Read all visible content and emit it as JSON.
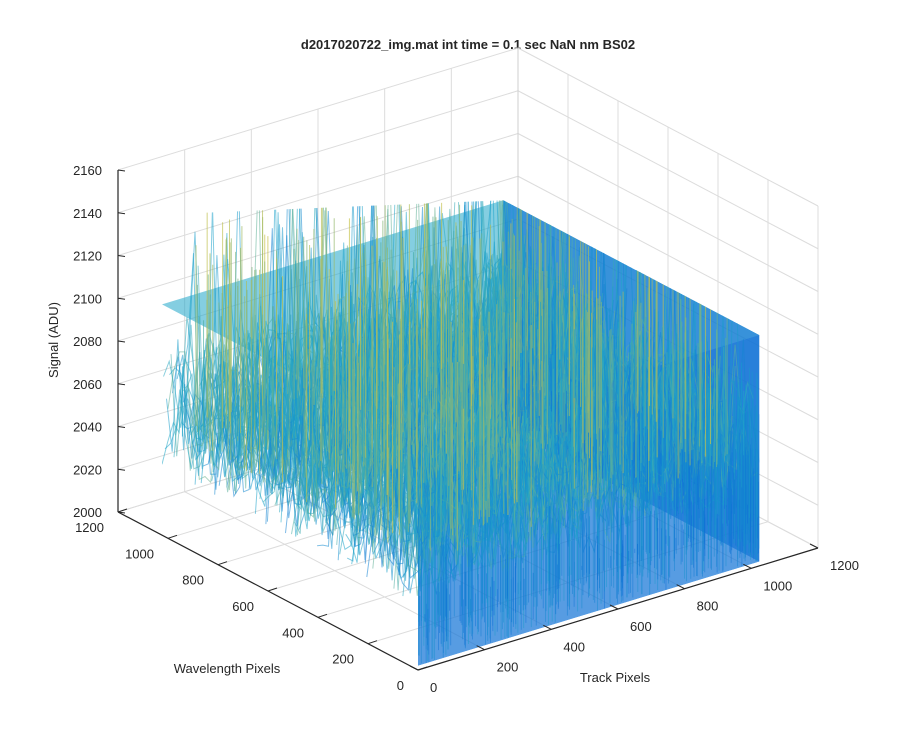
{
  "chart_data": {
    "type": "surface",
    "title": "d2017020722_img.mat int time = 0.1 sec  NaN nm BS02",
    "xlabel": "Track Pixels",
    "ylabel": "Wavelength Pixels",
    "zlabel": "Signal (ADU)",
    "xlim": [
      0,
      1200
    ],
    "ylim": [
      0,
      1200
    ],
    "zlim": [
      2000,
      2160
    ],
    "xticks": [
      "0",
      "200",
      "400",
      "600",
      "800",
      "1000",
      "1200"
    ],
    "yticks": [
      "0",
      "200",
      "400",
      "600",
      "800",
      "1000",
      "1200"
    ],
    "zticks": [
      "2000",
      "2020",
      "2040",
      "2060",
      "2080",
      "2100",
      "2120",
      "2140",
      "2160"
    ],
    "grid": true,
    "colormap": "parula",
    "surface": {
      "x_extent": [
        0,
        1024
      ],
      "y_extent": [
        0,
        1024
      ],
      "signal_mean": 2060,
      "signal_typical_range": [
        2020,
        2100
      ],
      "signal_peak_max": 2150
    },
    "colors": {
      "low": "#0f72d6",
      "mid": "#1fa6c9",
      "high": "#c9c24a",
      "grid": "#dcdcdc",
      "axis": "#262626"
    }
  }
}
